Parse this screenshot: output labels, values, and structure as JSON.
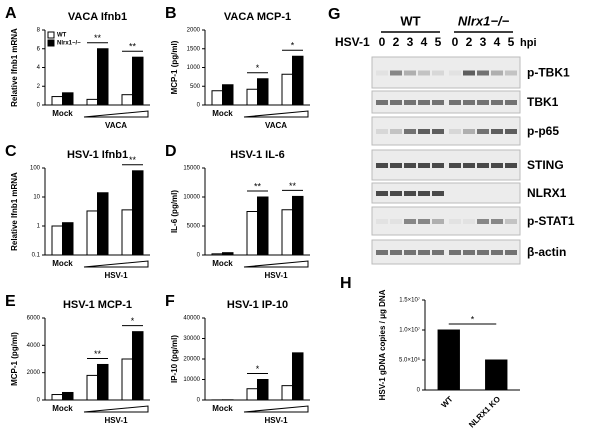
{
  "chart_data": [
    {
      "type": "bar",
      "panel": "A",
      "title": "VACA Ifnb1",
      "ylabel": "Relative Ifnb1 mRNA",
      "categories": [
        "Mock",
        null,
        null
      ],
      "group_label": "VACA",
      "series": [
        {
          "name": "WT",
          "color": "#ffffff",
          "values": [
            0.9,
            0.6,
            1.1
          ]
        },
        {
          "name": "Nlrx1−/−",
          "color": "#000000",
          "values": [
            1.3,
            6.0,
            5.1
          ]
        }
      ],
      "ylim": [
        0,
        8
      ],
      "yticks": [
        0,
        2,
        4,
        6,
        8
      ],
      "annotations": [
        "**",
        "**"
      ]
    },
    {
      "type": "bar",
      "panel": "B",
      "title": "VACA MCP-1",
      "ylabel": "MCP-1 (pg/ml)",
      "categories": [
        "Mock",
        null,
        null
      ],
      "group_label": "VACA",
      "series": [
        {
          "color": "#ffffff",
          "values": [
            380,
            420,
            820
          ]
        },
        {
          "color": "#000000",
          "values": [
            540,
            700,
            1300
          ]
        }
      ],
      "ylim": [
        0,
        2000
      ],
      "yticks": [
        0,
        500,
        1000,
        1500,
        2000
      ],
      "annotations": [
        "*",
        "*"
      ]
    },
    {
      "type": "bar",
      "panel": "C",
      "title": "HSV-1 Ifnb1",
      "ylabel": "Relative Ifnb1 mRNA",
      "categories": [
        "Mock",
        null,
        null
      ],
      "group_label": "HSV-1",
      "series": [
        {
          "color": "#ffffff",
          "values": [
            1.0,
            3.3,
            3.6
          ]
        },
        {
          "color": "#000000",
          "values": [
            1.3,
            14,
            80
          ]
        }
      ],
      "ylim": [
        0.1,
        100
      ],
      "log": true,
      "yticks": [
        0.1,
        1,
        10,
        100
      ],
      "annotations": [
        "**"
      ]
    },
    {
      "type": "bar",
      "panel": "D",
      "title": "HSV-1 IL-6",
      "ylabel": "IL-6 (pg/ml)",
      "categories": [
        "Mock",
        null,
        null
      ],
      "group_label": "HSV-1",
      "series": [
        {
          "color": "#ffffff",
          "values": [
            200,
            7500,
            7800
          ]
        },
        {
          "color": "#000000",
          "values": [
            400,
            10000,
            10100
          ]
        }
      ],
      "ylim": [
        0,
        15000
      ],
      "yticks": [
        0,
        5000,
        10000,
        15000
      ],
      "annotations": [
        "**",
        "**"
      ]
    },
    {
      "type": "bar",
      "panel": "E",
      "title": "HSV-1 MCP-1",
      "ylabel": "MCP-1 (pg/ml)",
      "categories": [
        "Mock",
        null,
        null
      ],
      "group_label": "HSV-1",
      "series": [
        {
          "color": "#ffffff",
          "values": [
            400,
            1800,
            3000
          ]
        },
        {
          "color": "#000000",
          "values": [
            550,
            2600,
            5000
          ]
        }
      ],
      "ylim": [
        0,
        6000
      ],
      "yticks": [
        0,
        2000,
        4000,
        6000
      ],
      "annotations": [
        "**",
        "*"
      ]
    },
    {
      "type": "bar",
      "panel": "F",
      "title": "HSV-1 IP-10",
      "ylabel": "IP-10 (pg/ml)",
      "categories": [
        "Mock",
        null,
        null
      ],
      "group_label": "HSV-1",
      "series": [
        {
          "color": "#ffffff",
          "values": [
            50,
            5500,
            7000
          ]
        },
        {
          "color": "#000000",
          "values": [
            100,
            10000,
            23000
          ]
        }
      ],
      "ylim": [
        0,
        40000
      ],
      "yticks": [
        0,
        10000,
        20000,
        30000,
        40000
      ],
      "annotations": [
        "*"
      ]
    },
    {
      "type": "bar",
      "panel": "H",
      "ylabel": "HSV-1 gDNA copies / μg DNA",
      "categories": [
        "WT",
        "NLRX1 KO"
      ],
      "series": [
        {
          "color": "#000000",
          "values": [
            10000000,
            5000000
          ]
        }
      ],
      "ylim": [
        0,
        15000000
      ],
      "yticks": [
        {
          "value": 0,
          "label": "0"
        },
        {
          "value": 5000000,
          "label": "5.0×10⁶"
        },
        {
          "value": 10000000,
          "label": "1.0×10⁷"
        },
        {
          "value": 15000000,
          "label": "1.5×10⁷"
        }
      ],
      "annotations": [
        "*"
      ]
    }
  ],
  "blot": {
    "panel": "G",
    "groups": [
      "WT",
      "Nlrx1−/−"
    ],
    "treatment": "HSV-1",
    "unit": "hpi",
    "lanes": [
      "0",
      "2",
      "3",
      "4",
      "5",
      "0",
      "2",
      "3",
      "4",
      "5"
    ],
    "rows": [
      "p-TBK1",
      "TBK1",
      "p-p65",
      "STING",
      "NLRX1",
      "p-STAT1",
      "β-actin"
    ]
  }
}
